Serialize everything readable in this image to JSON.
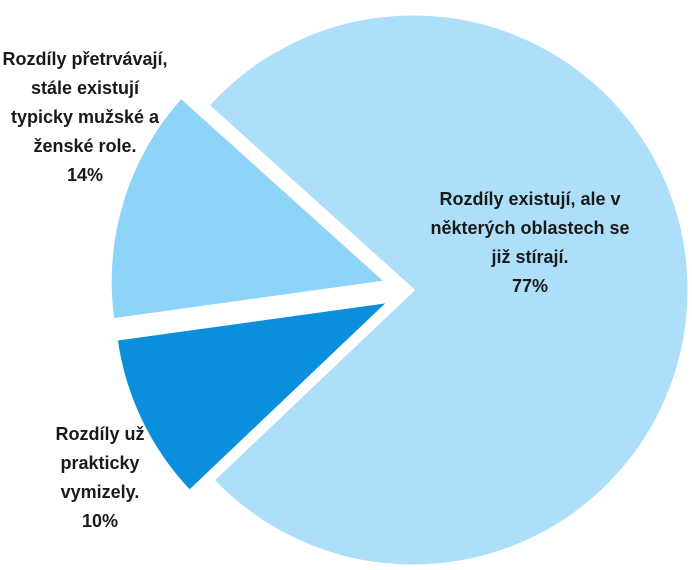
{
  "chart_data": {
    "type": "pie",
    "categories": [
      "Rozdíly existují, ale v některých oblastech se již stírají.",
      "Rozdíly už prakticky vymizely.",
      "Rozdíly přetrvávají, stále existují typicky mužské a ženské role."
    ],
    "values": [
      77,
      10,
      14
    ],
    "value_labels": [
      "77%",
      "10%",
      "14%"
    ],
    "colors": [
      "#addffa",
      "#0a8fdc",
      "#8dd4f8"
    ]
  }
}
